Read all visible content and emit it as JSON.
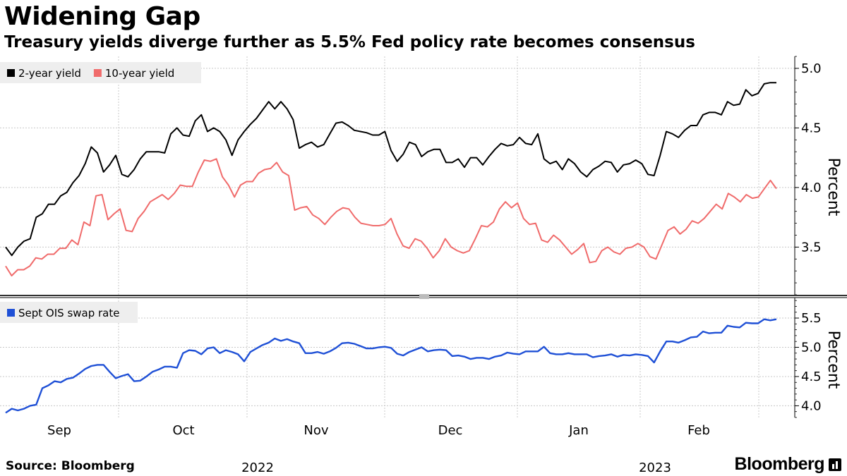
{
  "title": "Widening Gap",
  "subtitle": "Treasury yields diverge further as 5.5% Fed policy rate becomes consensus",
  "source": "Source: Bloomberg",
  "brand": "Bloomberg",
  "x_axis": {
    "months": [
      "Sep",
      "Oct",
      "Nov",
      "Dec",
      "Jan",
      "Feb"
    ],
    "years": [
      "2022",
      "2023"
    ]
  },
  "chart_data": [
    {
      "type": "line",
      "title": "Widening Gap",
      "ylabel": "Percent",
      "ylim": [
        3.1,
        5.1
      ],
      "yticks": [
        3.5,
        4.0,
        4.5,
        5.0
      ],
      "grid": true,
      "legend": "top-left",
      "series": [
        {
          "name": "2-year yield",
          "color": "#000000",
          "values": [
            3.5,
            3.43,
            3.5,
            3.55,
            3.57,
            3.75,
            3.78,
            3.86,
            3.86,
            3.93,
            3.96,
            4.04,
            4.1,
            4.2,
            4.34,
            4.29,
            4.13,
            4.19,
            4.27,
            4.11,
            4.09,
            4.15,
            4.24,
            4.3,
            4.3,
            4.3,
            4.29,
            4.45,
            4.5,
            4.44,
            4.43,
            4.56,
            4.61,
            4.47,
            4.5,
            4.47,
            4.4,
            4.27,
            4.4,
            4.47,
            4.53,
            4.58,
            4.65,
            4.72,
            4.66,
            4.72,
            4.66,
            4.57,
            4.33,
            4.36,
            4.38,
            4.34,
            4.36,
            4.45,
            4.54,
            4.55,
            4.52,
            4.48,
            4.47,
            4.46,
            4.44,
            4.44,
            4.47,
            4.31,
            4.22,
            4.28,
            4.38,
            4.36,
            4.26,
            4.3,
            4.32,
            4.32,
            4.21,
            4.21,
            4.24,
            4.17,
            4.25,
            4.25,
            4.19,
            4.26,
            4.32,
            4.37,
            4.35,
            4.36,
            4.42,
            4.37,
            4.36,
            4.45,
            4.24,
            4.2,
            4.22,
            4.15,
            4.24,
            4.2,
            4.13,
            4.09,
            4.15,
            4.18,
            4.22,
            4.21,
            4.13,
            4.19,
            4.2,
            4.23,
            4.2,
            4.11,
            4.1,
            4.27,
            4.47,
            4.45,
            4.42,
            4.48,
            4.52,
            4.52,
            4.61,
            4.63,
            4.63,
            4.61,
            4.72,
            4.69,
            4.7,
            4.82,
            4.77,
            4.79,
            4.87,
            4.88,
            4.88
          ]
        },
        {
          "name": "10-year yield",
          "color": "#f06b6b",
          "values": [
            3.34,
            3.26,
            3.31,
            3.31,
            3.34,
            3.41,
            3.4,
            3.44,
            3.44,
            3.49,
            3.49,
            3.56,
            3.52,
            3.71,
            3.68,
            3.93,
            3.94,
            3.73,
            3.78,
            3.82,
            3.64,
            3.63,
            3.74,
            3.8,
            3.88,
            3.91,
            3.94,
            3.9,
            3.95,
            4.02,
            4.01,
            4.01,
            4.13,
            4.23,
            4.22,
            4.24,
            4.09,
            4.02,
            3.92,
            4.02,
            4.05,
            4.05,
            4.12,
            4.15,
            4.16,
            4.21,
            4.13,
            4.1,
            3.81,
            3.83,
            3.84,
            3.77,
            3.74,
            3.69,
            3.75,
            3.8,
            3.83,
            3.82,
            3.75,
            3.7,
            3.69,
            3.68,
            3.68,
            3.69,
            3.74,
            3.61,
            3.51,
            3.49,
            3.57,
            3.55,
            3.49,
            3.41,
            3.47,
            3.57,
            3.5,
            3.47,
            3.45,
            3.47,
            3.57,
            3.68,
            3.67,
            3.71,
            3.82,
            3.88,
            3.83,
            3.87,
            3.74,
            3.69,
            3.7,
            3.56,
            3.54,
            3.6,
            3.56,
            3.5,
            3.44,
            3.48,
            3.53,
            3.37,
            3.38,
            3.47,
            3.5,
            3.46,
            3.44,
            3.49,
            3.5,
            3.53,
            3.5,
            3.42,
            3.4,
            3.52,
            3.64,
            3.67,
            3.61,
            3.65,
            3.72,
            3.7,
            3.74,
            3.8,
            3.86,
            3.82,
            3.95,
            3.92,
            3.88,
            3.94,
            3.91,
            3.92,
            3.99,
            4.06,
            3.99
          ]
        }
      ]
    },
    {
      "type": "line",
      "ylabel": "Percent",
      "ylim": [
        3.8,
        5.85
      ],
      "yticks": [
        4.0,
        4.5,
        5.0,
        5.5
      ],
      "grid": true,
      "legend": "top-left",
      "series": [
        {
          "name": "Sept OIS swap rate",
          "color": "#1f50d6",
          "values": [
            3.88,
            3.95,
            3.92,
            3.95,
            4.0,
            4.02,
            4.3,
            4.35,
            4.42,
            4.4,
            4.46,
            4.48,
            4.55,
            4.63,
            4.68,
            4.7,
            4.7,
            4.58,
            4.47,
            4.51,
            4.54,
            4.42,
            4.43,
            4.5,
            4.58,
            4.62,
            4.67,
            4.67,
            4.65,
            4.9,
            4.95,
            4.94,
            4.88,
            4.98,
            5.0,
            4.9,
            4.95,
            4.92,
            4.88,
            4.76,
            4.92,
            4.98,
            5.04,
            5.08,
            5.15,
            5.11,
            5.14,
            5.1,
            5.07,
            4.9,
            4.9,
            4.92,
            4.89,
            4.93,
            4.99,
            5.07,
            5.08,
            5.06,
            5.02,
            4.98,
            4.98,
            5.0,
            5.01,
            4.99,
            4.89,
            4.86,
            4.92,
            4.96,
            5.0,
            4.93,
            4.95,
            4.96,
            4.95,
            4.85,
            4.86,
            4.84,
            4.8,
            4.82,
            4.82,
            4.8,
            4.84,
            4.86,
            4.91,
            4.89,
            4.88,
            4.93,
            4.93,
            4.93,
            5.01,
            4.9,
            4.88,
            4.88,
            4.9,
            4.88,
            4.88,
            4.88,
            4.83,
            4.85,
            4.86,
            4.88,
            4.84,
            4.87,
            4.86,
            4.88,
            4.87,
            4.85,
            4.74,
            4.93,
            5.1,
            5.1,
            5.08,
            5.12,
            5.17,
            5.18,
            5.27,
            5.24,
            5.25,
            5.25,
            5.37,
            5.35,
            5.34,
            5.42,
            5.41,
            5.41,
            5.48,
            5.46,
            5.48
          ]
        }
      ]
    }
  ]
}
